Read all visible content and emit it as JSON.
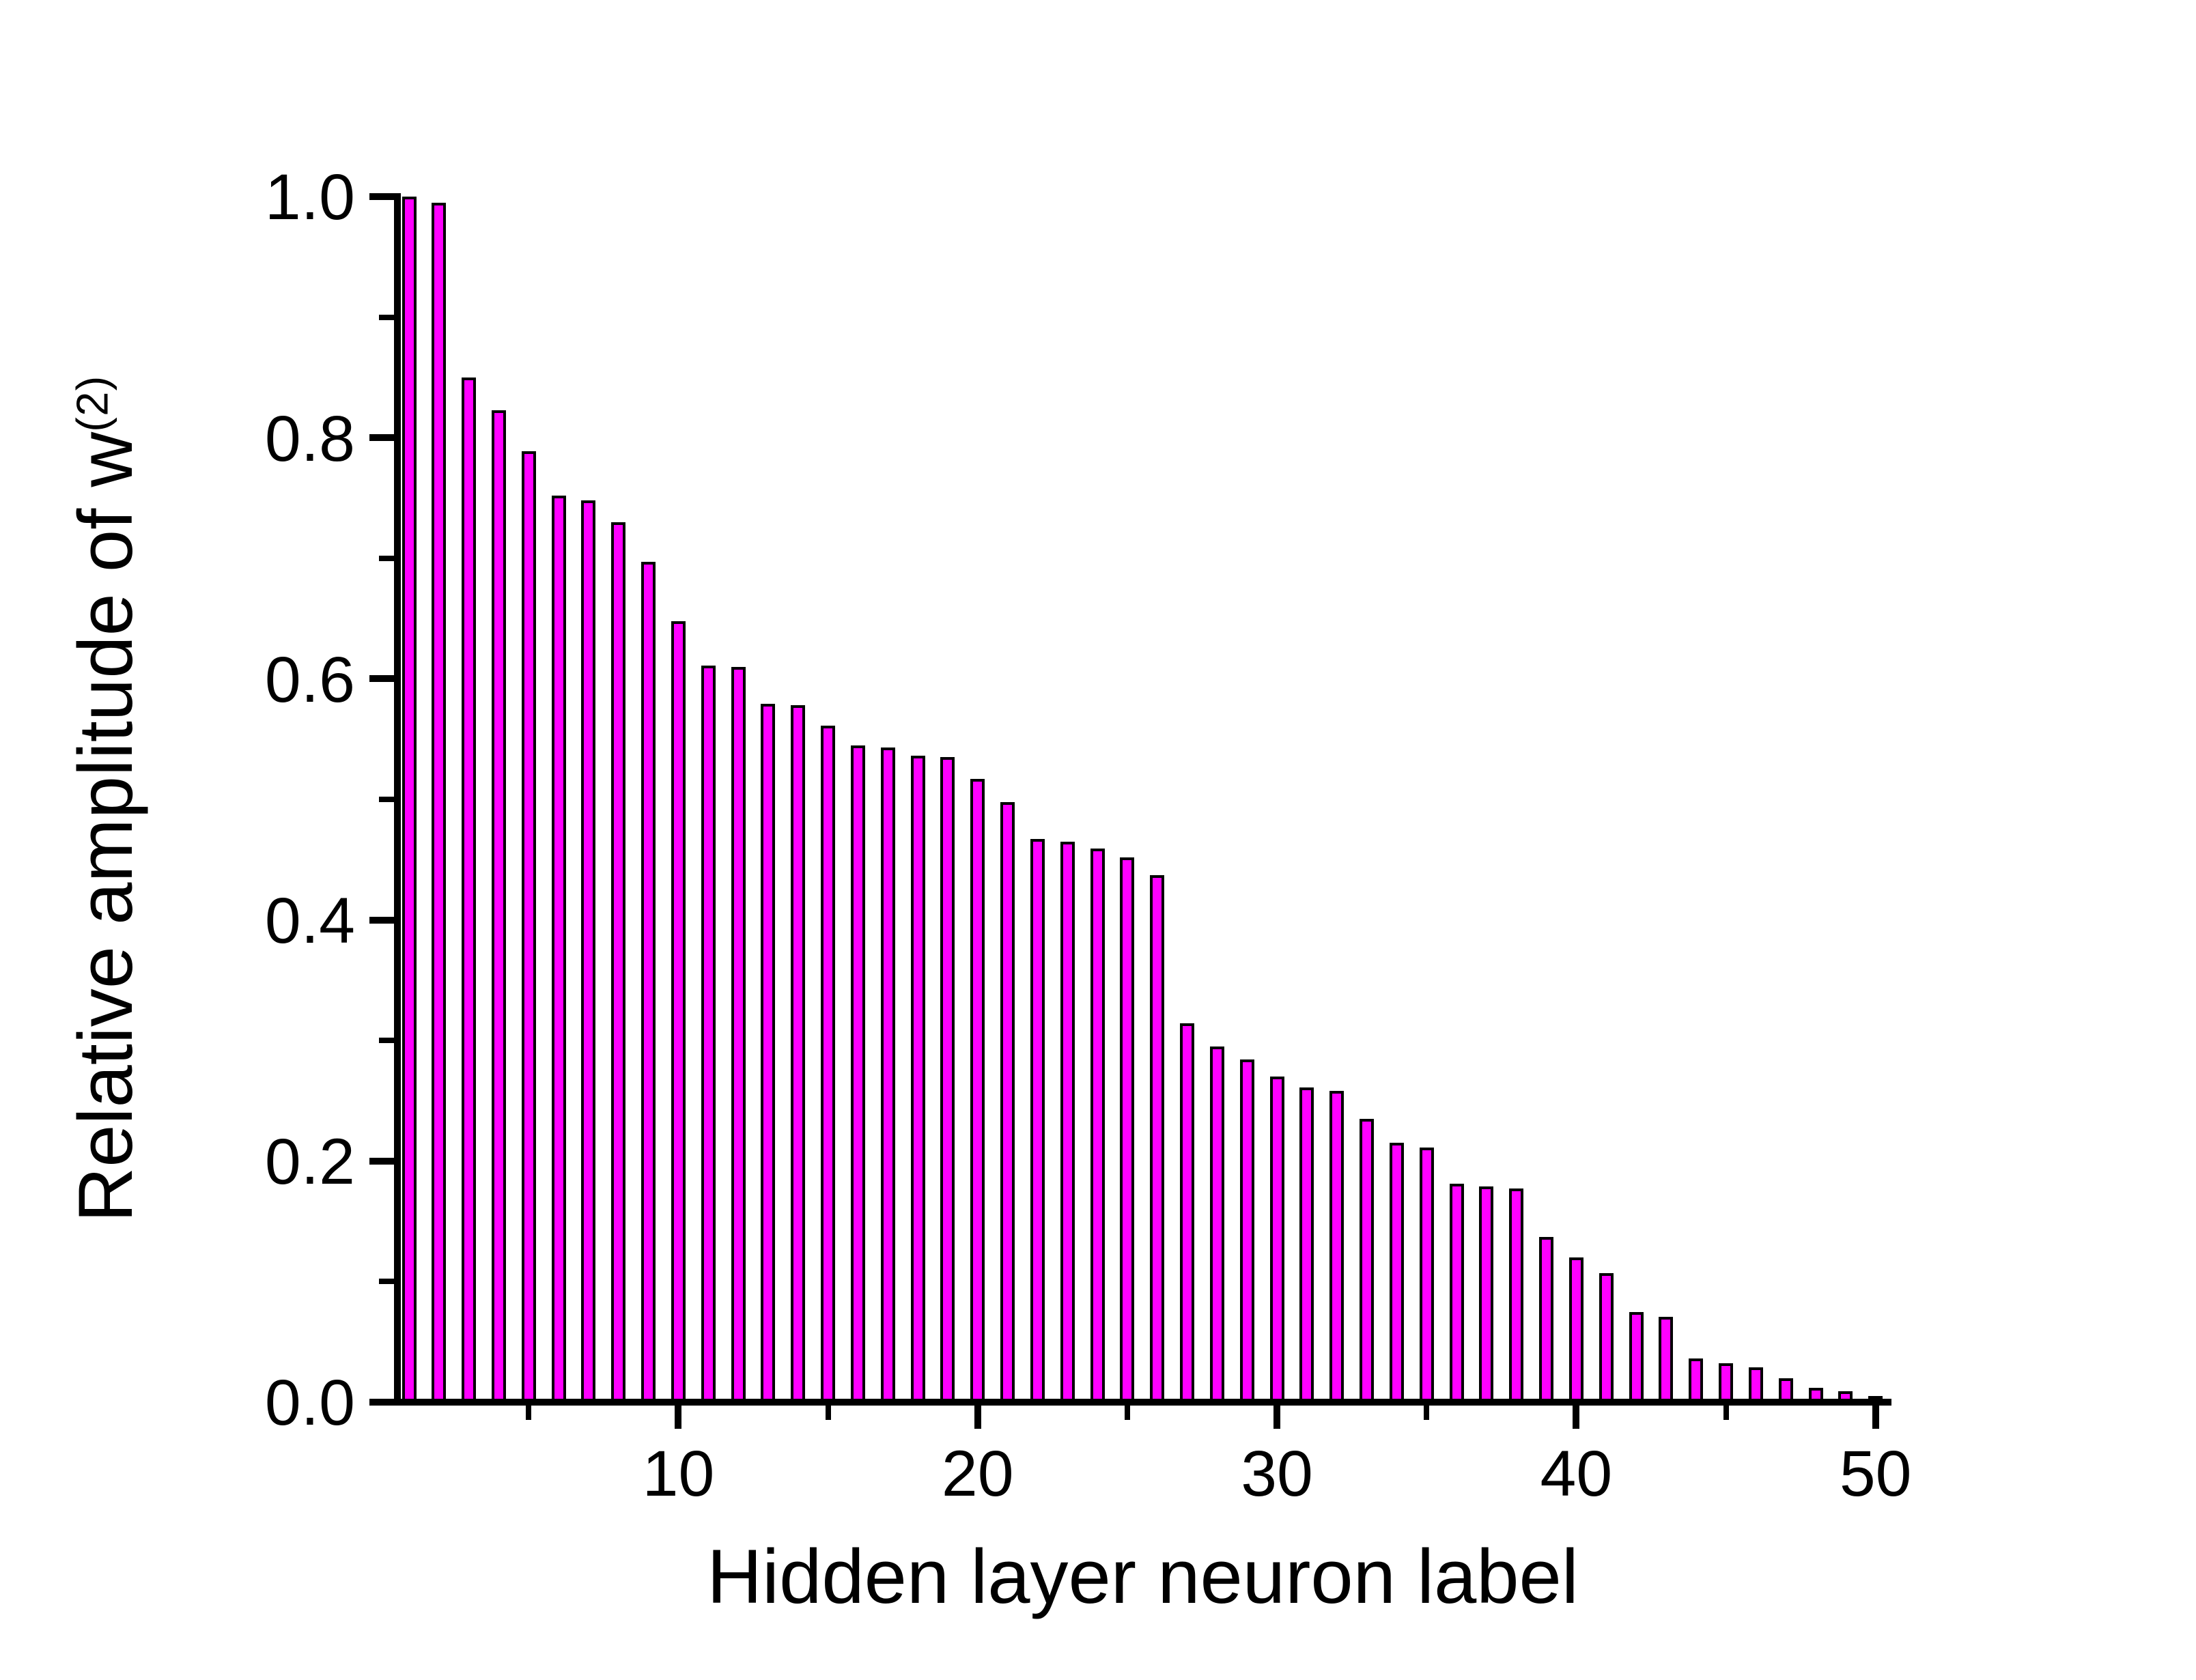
{
  "chart_data": {
    "type": "bar",
    "title": "",
    "xlabel": "Hidden layer neuron label",
    "ylabel_base": "Relative amplitude of w",
    "ylabel_superscript": "(2)",
    "x": [
      1,
      2,
      3,
      4,
      5,
      6,
      7,
      8,
      9,
      10,
      11,
      12,
      13,
      14,
      15,
      16,
      17,
      18,
      19,
      20,
      21,
      22,
      23,
      24,
      25,
      26,
      27,
      28,
      29,
      30,
      31,
      32,
      33,
      34,
      35,
      36,
      37,
      38,
      39,
      40,
      41,
      42,
      43,
      44,
      45,
      46,
      47,
      48,
      49,
      50
    ],
    "values": [
      1.0,
      0.995,
      0.85,
      0.823,
      0.789,
      0.752,
      0.748,
      0.73,
      0.697,
      0.648,
      0.611,
      0.61,
      0.579,
      0.578,
      0.561,
      0.545,
      0.543,
      0.536,
      0.535,
      0.517,
      0.498,
      0.467,
      0.465,
      0.459,
      0.452,
      0.437,
      0.314,
      0.295,
      0.284,
      0.27,
      0.261,
      0.258,
      0.235,
      0.215,
      0.211,
      0.181,
      0.179,
      0.177,
      0.137,
      0.12,
      0.107,
      0.075,
      0.071,
      0.036,
      0.032,
      0.029,
      0.02,
      0.012,
      0.009,
      0.005
    ],
    "ylim": [
      0.0,
      1.0
    ],
    "y_major_ticks": [
      0.0,
      0.2,
      0.4,
      0.6,
      0.8,
      1.0
    ],
    "y_major_tick_labels": [
      "0.0",
      "0.2",
      "0.4",
      "0.6",
      "0.8",
      "1.0"
    ],
    "y_minor_ticks": [
      0.1,
      0.3,
      0.5,
      0.7,
      0.9
    ],
    "x_major_ticks": [
      10,
      20,
      30,
      40,
      50
    ],
    "x_major_tick_labels": [
      "10",
      "20",
      "30",
      "40",
      "50"
    ],
    "x_minor_ticks": [
      5,
      15,
      25,
      35,
      45
    ],
    "grid": "off",
    "legend": "none",
    "bar_fill_color": "#FF00FF",
    "bar_outline_color": "#000000",
    "axis_color": "#000000",
    "text_color": "#000000",
    "background_color": "#FFFFFF"
  }
}
